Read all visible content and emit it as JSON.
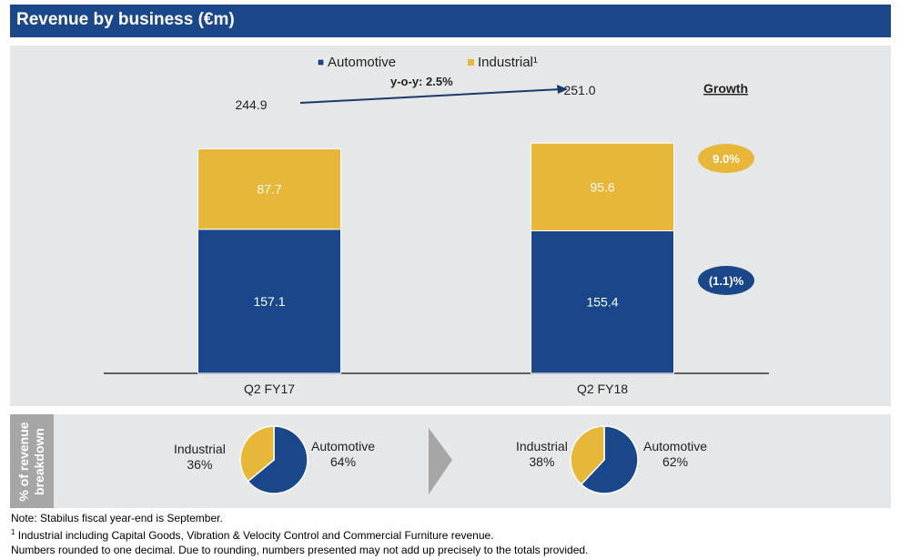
{
  "header": {
    "title": "Revenue by business (€m)"
  },
  "colors": {
    "automotive": "#1a4789",
    "industrial": "#e9b737",
    "title_bar": "#1a4789",
    "panel": "#e6e7e8",
    "arrow_shape": "#a6a6a6"
  },
  "chart_data": {
    "type": "bar",
    "stacked": true,
    "title": "Revenue by business (€m)",
    "categories": [
      "Q2 FY17",
      "Q2 FY18"
    ],
    "series": [
      {
        "name": "Automotive",
        "values": [
          157.1,
          155.4
        ],
        "labels": [
          "157.1",
          "155.4"
        ]
      },
      {
        "name": "Industrial¹",
        "values": [
          87.7,
          95.6
        ],
        "labels": [
          "87.7",
          "95.6"
        ]
      }
    ],
    "totals": [
      244.9,
      251.0
    ],
    "total_labels": [
      "244.9",
      "251.0"
    ],
    "legend": {
      "items": [
        "Automotive",
        "Industrial¹"
      ],
      "position": "top-center"
    },
    "annotation": "y-o-y: 2.5%",
    "growth": {
      "header": "Growth",
      "industrial": "9.0%",
      "automotive": "(1.1)%"
    },
    "ylim": [
      0,
      280
    ],
    "grid": false,
    "pies": [
      {
        "period": "Q2 FY17",
        "slices": [
          {
            "name": "Industrial",
            "value": 36,
            "label": "36%"
          },
          {
            "name": "Automotive",
            "value": 64,
            "label": "64%"
          }
        ]
      },
      {
        "period": "Q2 FY18",
        "slices": [
          {
            "name": "Industrial",
            "value": 38,
            "label": "38%"
          },
          {
            "name": "Automotive",
            "value": 62,
            "label": "62%"
          }
        ]
      }
    ]
  },
  "breakdown": {
    "side_label_line1": "% of revenue",
    "side_label_line2": "breakdown",
    "pie1": {
      "industrial_name": "Industrial",
      "industrial_pct": "36%",
      "automotive_name": "Automotive",
      "automotive_pct": "64%"
    },
    "pie2": {
      "industrial_name": "Industrial",
      "industrial_pct": "38%",
      "automotive_name": "Automotive",
      "automotive_pct": "62%"
    }
  },
  "notes": {
    "line1": "Note: Stabilus fiscal year-end is September.",
    "line2_sup": "1",
    "line2": " Industrial including Capital Goods, Vibration & Velocity Control and Commercial Furniture revenue.",
    "line3": "Numbers rounded to one decimal. Due to rounding, numbers presented may not add up precisely to the totals provided."
  }
}
